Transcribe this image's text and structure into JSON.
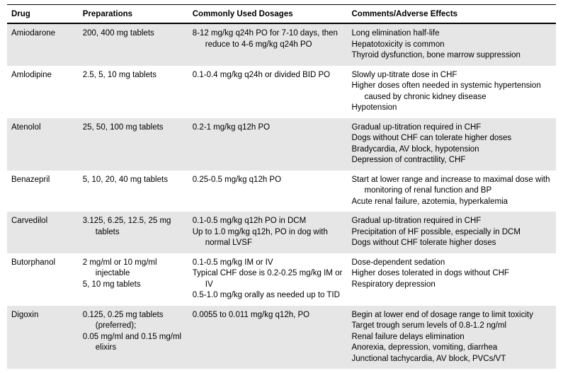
{
  "table": {
    "headers": {
      "drug": "Drug",
      "prep": "Preparations",
      "dose": "Commonly Used Dosages",
      "comm": "Comments/Adverse Effects"
    },
    "rows": [
      {
        "drug": "Amiodarone",
        "prep": [
          "200, 400 mg tablets"
        ],
        "dose": [
          "8-12 mg/kg q24h PO for 7-10 days, then reduce to 4-6 mg/kg q24h PO"
        ],
        "comm": [
          "Long elimination half-life",
          "Hepatotoxicity is common",
          "Thyroid dysfunction, bone marrow suppression"
        ]
      },
      {
        "drug": "Amlodipine",
        "prep": [
          "2.5, 5, 10 mg tablets"
        ],
        "dose": [
          "0.1-0.4 mg/kg q24h or divided BID PO"
        ],
        "comm": [
          "Slowly up-titrate dose in CHF",
          "Higher doses often needed in systemic hypertension caused by chronic kidney disease",
          "Hypotension"
        ]
      },
      {
        "drug": "Atenolol",
        "prep": [
          "25, 50, 100 mg tablets"
        ],
        "dose": [
          "0.2-1 mg/kg q12h PO"
        ],
        "comm": [
          "Gradual up-titration required in CHF",
          "Dogs without CHF can tolerate higher doses",
          "Bradycardia, AV block, hypotension",
          "Depression of contractility, CHF"
        ]
      },
      {
        "drug": "Benazepril",
        "prep": [
          "5, 10, 20, 40 mg tablets"
        ],
        "dose": [
          "0.25-0.5 mg/kg q12h PO"
        ],
        "comm": [
          "Start at lower range and increase to maximal dose with monitoring of renal function and BP",
          "Acute renal failure, azotemia, hyperkalemia"
        ]
      },
      {
        "drug": "Carvedilol",
        "prep": [
          "3.125, 6.25, 12.5, 25 mg tablets"
        ],
        "dose": [
          "0.1-0.5 mg/kg q12h PO in DCM",
          "Up to 1.0 mg/kg q12h, PO in dog with normal LVSF"
        ],
        "comm": [
          "Gradual up-titration required in CHF",
          "Precipitation of HF possible, especially in DCM",
          "Dogs without CHF tolerate higher doses"
        ]
      },
      {
        "drug": "Butorphanol",
        "prep": [
          "2 mg/ml or 10 mg/ml injectable",
          "5, 10 mg tablets"
        ],
        "dose": [
          "0.1-0.5 mg/kg IM or IV",
          "Typical CHF dose is 0.2-0.25 mg/kg IM or IV",
          "0.5-1.0 mg/kg orally as needed up to TID"
        ],
        "comm": [
          "Dose-dependent sedation",
          "Higher doses tolerated in dogs without CHF",
          "Respiratory depression"
        ]
      },
      {
        "drug": "Digoxin",
        "prep": [
          "0.125, 0.25 mg tablets (preferred);",
          "0.05 mg/ml and 0.15 mg/ml elixirs"
        ],
        "dose": [
          "0.0055 to 0.011 mg/kg q12h, PO"
        ],
        "comm": [
          "Begin at lower end of dosage range to limit toxicity",
          "Target trough serum levels of 0.8-1.2 ng/ml",
          "Renal failure delays elimination",
          "Anorexia, depression, vomiting, diarrhea",
          "Junctional tachycardia, AV block, PVCs/VT"
        ]
      }
    ],
    "shading_alternate": true,
    "colors": {
      "shade": "#e6e6e6",
      "rule": "#000000",
      "text": "#000000",
      "background": "#ffffff"
    },
    "font": {
      "family": "Arial",
      "size_pt": 9,
      "header_weight": "bold"
    }
  }
}
